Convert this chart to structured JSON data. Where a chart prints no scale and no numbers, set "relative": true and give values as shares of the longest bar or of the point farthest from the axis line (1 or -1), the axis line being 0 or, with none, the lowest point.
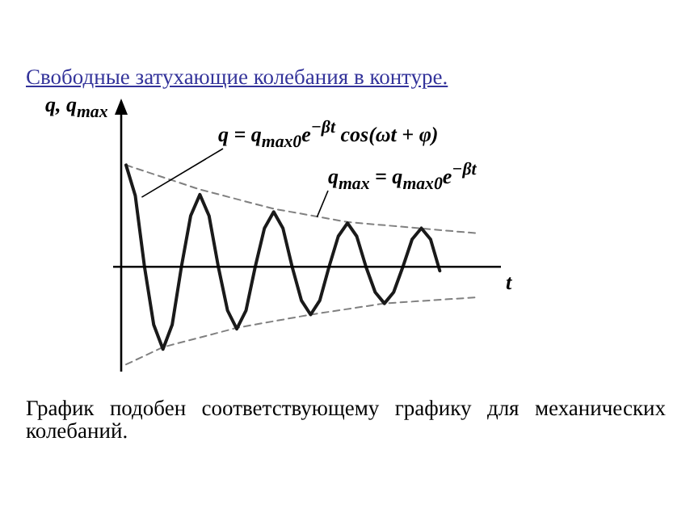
{
  "chart_data": {
    "type": "line",
    "relative": true,
    "marker": "none",
    "title": "Свободные затухающие колебания в контуре.",
    "ylabel": "q, q$_{max}$",
    "xlabel": "t",
    "categories": [
      null,
      null,
      null,
      null,
      null,
      null,
      null,
      null,
      null,
      null,
      null,
      null,
      null,
      null,
      null,
      null,
      null,
      null,
      null,
      null,
      null,
      null,
      null,
      null,
      null,
      null,
      null,
      null,
      null,
      null,
      null,
      null,
      null,
      null,
      null,
      null,
      null,
      null,
      null
    ],
    "series": [
      {
        "color": "#1a1a1a",
        "line_style": "solid",
        "values": [
          1.0,
          0.7,
          0,
          -0.57,
          -0.81,
          -0.57,
          0,
          0.5,
          0.71,
          0.5,
          0,
          -0.43,
          -0.61,
          -0.43,
          0,
          0.38,
          0.54,
          0.38,
          0,
          -0.33,
          -0.47,
          -0.33,
          0,
          0.3,
          0.43,
          0.3,
          0,
          -0.25,
          -0.36,
          -0.25,
          0,
          0.27,
          0.38,
          0.27,
          -0.04,
          null,
          null,
          null,
          null
        ]
      },
      {
        "type": "line",
        "color": "#808080",
        "line_style": "dashed",
        "values": [
          1.0,
          null,
          null,
          null,
          null,
          null,
          null,
          null,
          0.76,
          null,
          null,
          null,
          null,
          null,
          null,
          null,
          0.57,
          null,
          null,
          null,
          null,
          null,
          null,
          null,
          0.44,
          null,
          null,
          null,
          null,
          null,
          null,
          null,
          null,
          null,
          null,
          null,
          null,
          null,
          0.33
        ]
      },
      {
        "type": "line",
        "color": "#808080",
        "line_style": "dashed",
        "values": [
          -0.96,
          null,
          null,
          null,
          -0.79,
          null,
          null,
          null,
          null,
          null,
          null,
          null,
          -0.6,
          null,
          null,
          null,
          null,
          null,
          null,
          null,
          -0.47,
          null,
          null,
          null,
          null,
          null,
          null,
          null,
          -0.36,
          null,
          null,
          null,
          null,
          null,
          null,
          null,
          null,
          null,
          -0.3
        ]
      }
    ],
    "annotations": [
      "q = q$_{max0}$e$^{−βt}$ cos(ωt + φ)",
      "q$_{max}$ = q$_{max0}$e$^{−βt}$",
      "График подобен соответствующему графику для механических колебаний."
    ]
  }
}
